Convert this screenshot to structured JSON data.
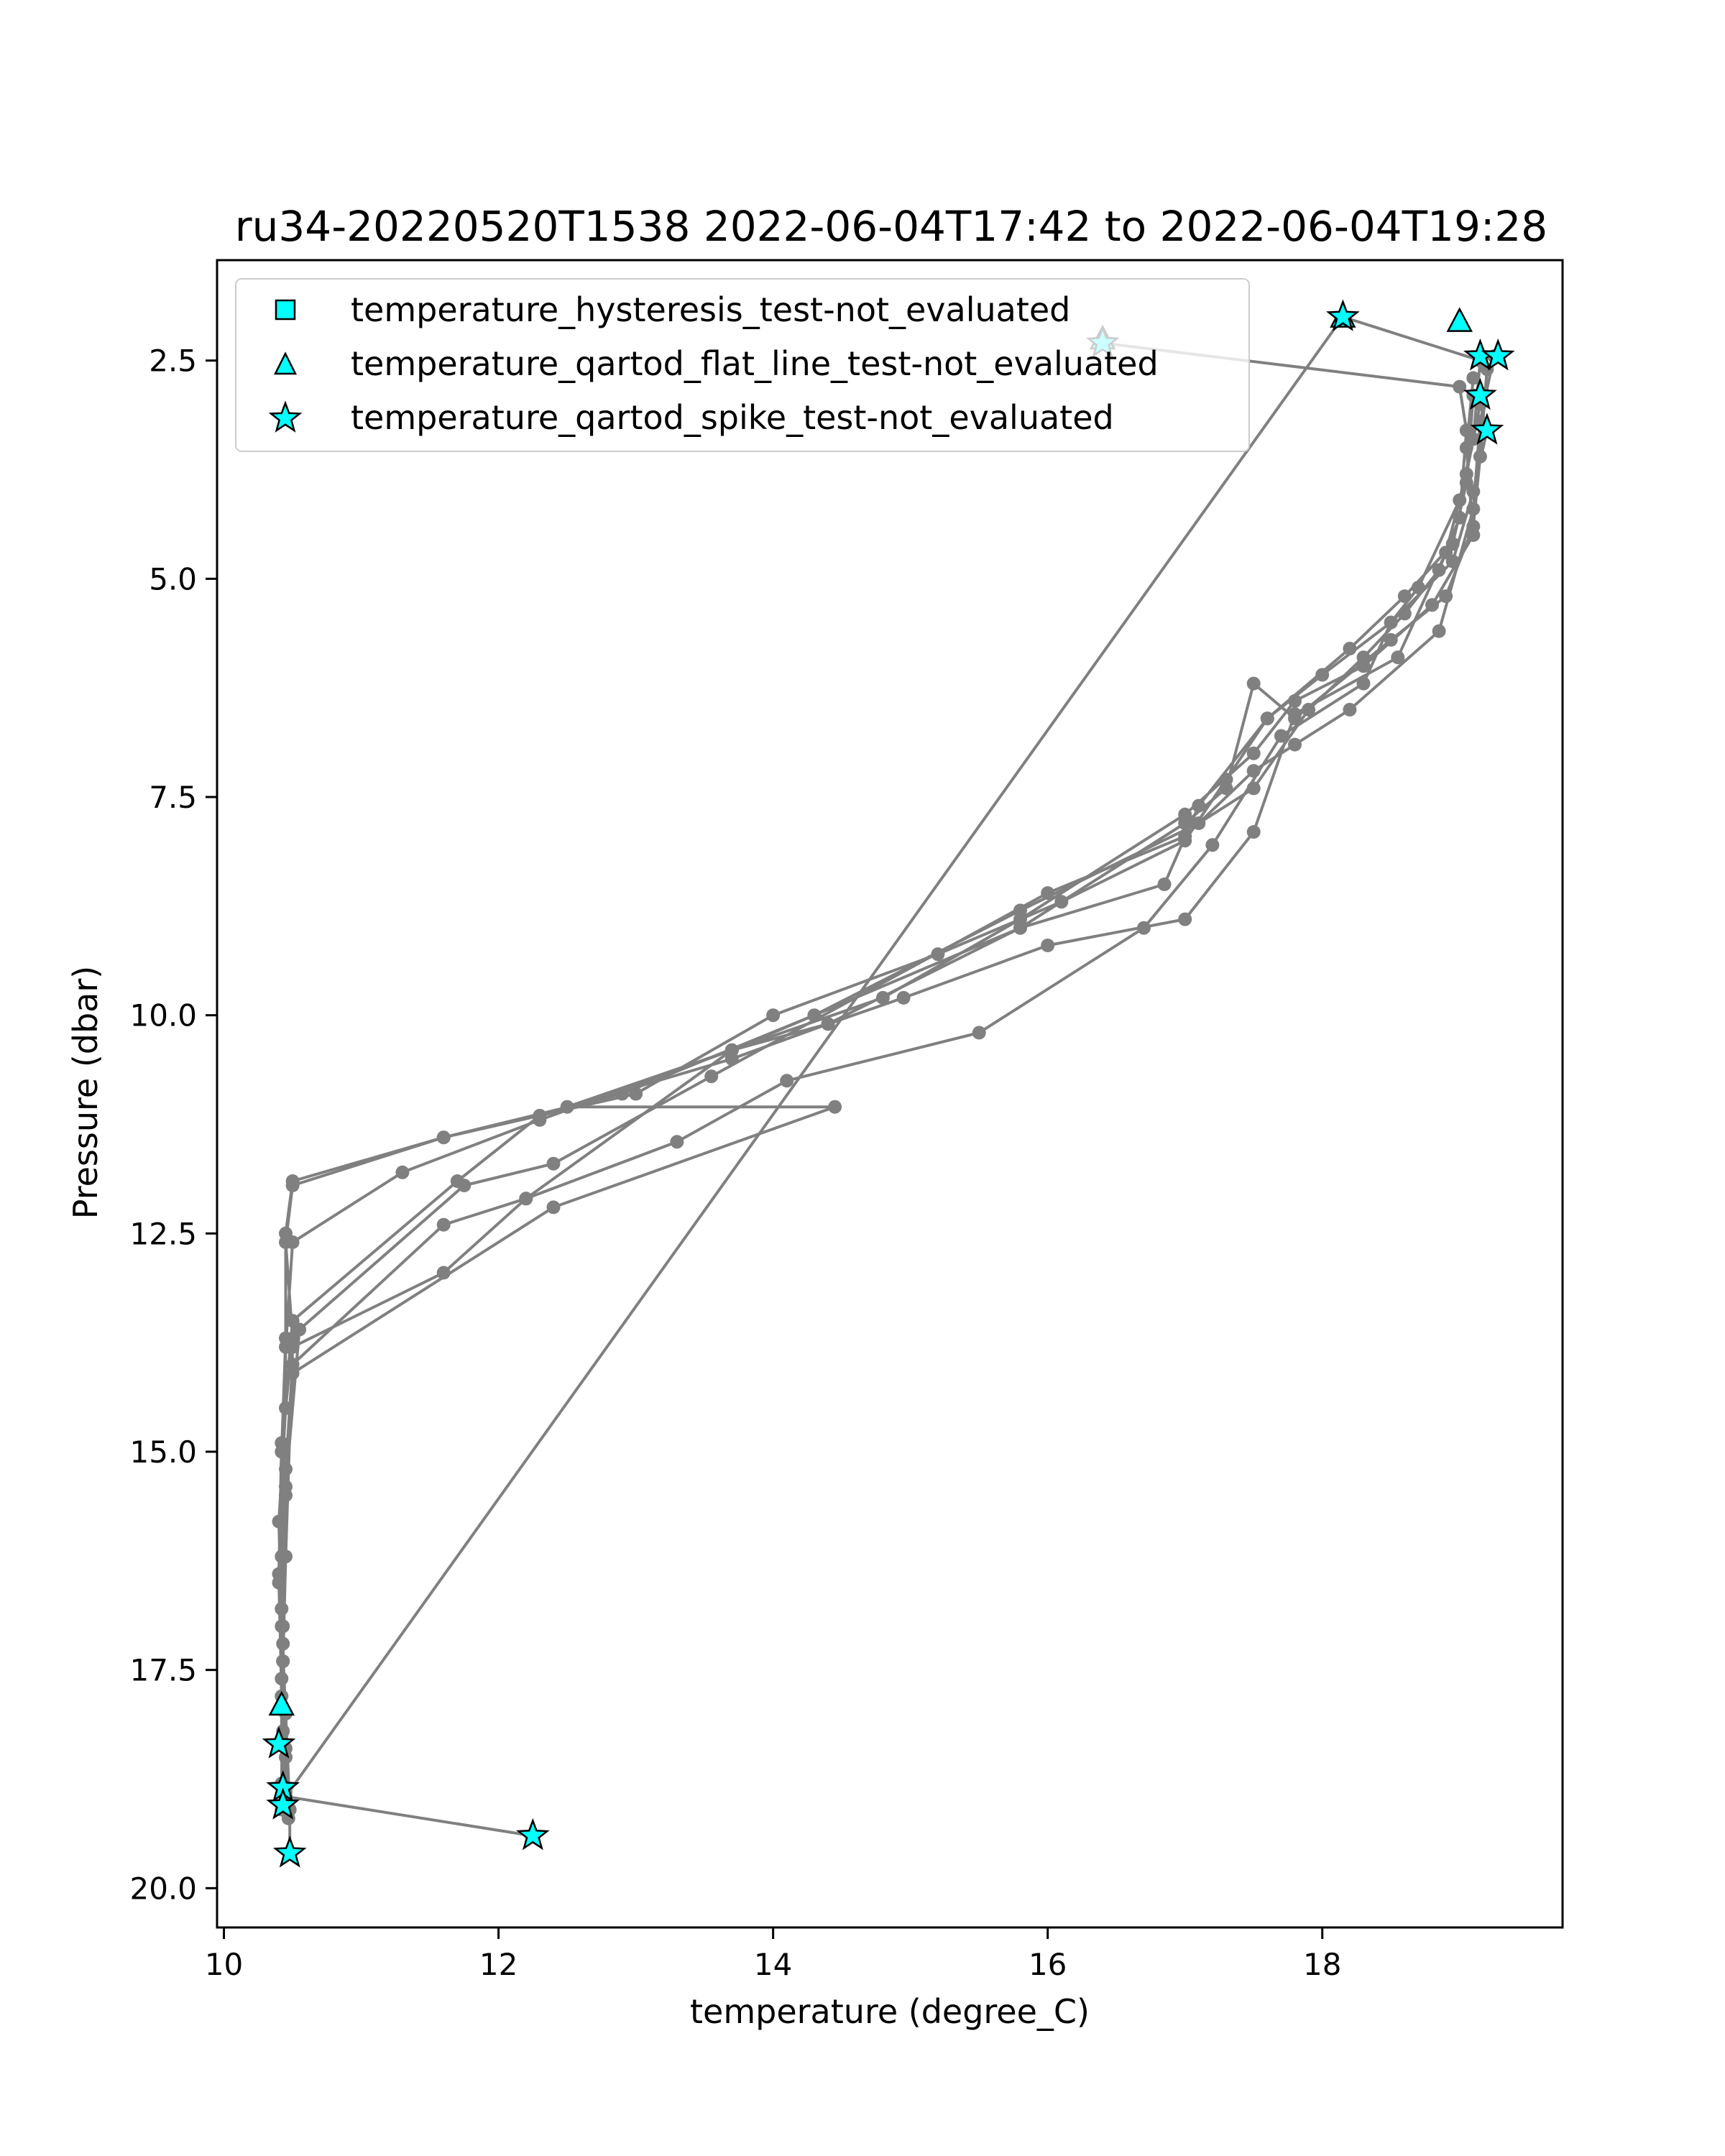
{
  "chart_data": {
    "type": "scatter",
    "title": "ru34-20220520T1538 2022-06-04T17:42 to 2022-06-04T19:28",
    "xlabel": "temperature (degree_C)",
    "ylabel": "Pressure (dbar)",
    "xlim": [
      9.95,
      19.75
    ],
    "ylim": [
      20.45,
      1.35
    ],
    "y_inverted": true,
    "grid": false,
    "legend_position": "top-left",
    "xticks": [
      "10",
      "12",
      "14",
      "16",
      "18"
    ],
    "xtick_values": [
      10,
      12,
      14,
      16,
      18
    ],
    "yticks": [
      "2.5",
      "5.0",
      "7.5",
      "10.0",
      "12.5",
      "15.0",
      "17.5",
      "20.0"
    ],
    "ytick_values": [
      2.5,
      5.0,
      7.5,
      10.0,
      12.5,
      15.0,
      17.5,
      20.0
    ],
    "line_color": "#808080",
    "marker_face_color": "#00ffff",
    "marker_edge_color": "#000000",
    "legend": [
      {
        "label": "temperature_hysteresis_test-not_evaluated",
        "marker": "square"
      },
      {
        "label": "temperature_qartod_flat_line_test-not_evaluated",
        "marker": "triangle"
      },
      {
        "label": "temperature_qartod_spike_test-not_evaluated",
        "marker": "star"
      }
    ],
    "series": [
      {
        "points": [
          [
            16.4,
            2.3
          ],
          [
            19.0,
            2.8
          ],
          [
            19.05,
            3.3
          ],
          [
            19.0,
            4.3
          ],
          [
            18.85,
            4.9
          ],
          [
            18.6,
            5.4
          ],
          [
            18.3,
            5.9
          ],
          [
            17.9,
            6.5
          ],
          [
            17.5,
            7.4
          ],
          [
            17.1,
            7.8
          ],
          [
            15.8,
            8.8
          ],
          [
            14.3,
            10.0
          ],
          [
            12.9,
            10.9
          ],
          [
            11.6,
            11.4
          ],
          [
            10.5,
            11.9
          ],
          [
            10.45,
            12.5
          ],
          [
            10.45,
            13.7
          ],
          [
            10.42,
            15.0
          ],
          [
            10.4,
            16.5
          ],
          [
            10.42,
            17.6
          ],
          [
            10.43,
            18.2
          ],
          [
            10.45,
            18.95
          ]
        ]
      },
      {
        "points": [
          [
            10.45,
            18.95
          ],
          [
            12.25,
            19.4
          ]
        ]
      },
      {
        "points": [
          [
            10.45,
            18.95
          ],
          [
            18.15,
            2.0
          ],
          [
            19.15,
            2.5
          ],
          [
            19.1,
            3.4
          ],
          [
            19.0,
            4.1
          ],
          [
            18.7,
            5.1
          ],
          [
            18.5,
            5.5
          ],
          [
            18.0,
            6.1
          ],
          [
            17.6,
            6.6
          ],
          [
            17.3,
            7.3
          ],
          [
            17.0,
            8.0
          ],
          [
            16.1,
            8.7
          ],
          [
            15.2,
            9.3
          ],
          [
            14.0,
            10.0
          ],
          [
            13.0,
            10.9
          ],
          [
            11.6,
            11.4
          ],
          [
            10.5,
            11.95
          ],
          [
            10.45,
            12.6
          ],
          [
            10.5,
            13.7
          ],
          [
            10.45,
            14.5
          ],
          [
            10.4,
            15.8
          ],
          [
            10.42,
            17.0
          ],
          [
            10.45,
            18.0
          ],
          [
            10.48,
            19.1
          ],
          [
            10.48,
            19.6
          ]
        ]
      },
      {
        "points": [
          [
            19.1,
            2.7
          ],
          [
            19.05,
            3.5
          ],
          [
            19.1,
            4.5
          ],
          [
            18.8,
            5.3
          ],
          [
            18.3,
            6.0
          ],
          [
            17.8,
            6.4
          ],
          [
            17.5,
            7.0
          ],
          [
            17.0,
            7.7
          ],
          [
            15.8,
            8.9
          ],
          [
            14.8,
            9.8
          ],
          [
            13.7,
            10.4
          ],
          [
            12.3,
            11.2
          ],
          [
            11.3,
            11.8
          ],
          [
            10.5,
            12.6
          ],
          [
            10.45,
            13.8
          ],
          [
            10.42,
            16.2
          ],
          [
            10.43,
            17.4
          ],
          [
            10.45,
            18.5
          ],
          [
            10.47,
            19.2
          ]
        ]
      },
      {
        "points": [
          [
            19.2,
            2.6
          ],
          [
            19.15,
            3.6
          ],
          [
            19.1,
            4.4
          ],
          [
            18.9,
            5.2
          ],
          [
            18.5,
            5.7
          ],
          [
            17.8,
            6.6
          ],
          [
            17.5,
            6.2
          ],
          [
            17.3,
            7.4
          ],
          [
            17.0,
            7.8
          ],
          [
            15.8,
            9.0
          ],
          [
            13.7,
            10.4
          ],
          [
            12.2,
            12.1
          ],
          [
            11.6,
            12.4
          ],
          [
            10.5,
            14.0
          ],
          [
            10.45,
            15.2
          ],
          [
            10.43,
            17.2
          ],
          [
            10.45,
            18.4
          ]
        ]
      },
      {
        "points": [
          [
            19.25,
            2.45
          ],
          [
            19.15,
            3.2
          ],
          [
            19.1,
            4.2
          ],
          [
            18.85,
            5.6
          ],
          [
            18.2,
            6.5
          ],
          [
            17.8,
            6.9
          ],
          [
            17.5,
            7.2
          ],
          [
            17.0,
            7.95
          ],
          [
            16.0,
            8.6
          ],
          [
            13.55,
            10.7
          ],
          [
            12.4,
            11.7
          ],
          [
            11.75,
            11.95
          ],
          [
            10.55,
            13.6
          ],
          [
            10.45,
            15.4
          ],
          [
            10.42,
            16.8
          ],
          [
            10.42,
            18.35
          ]
        ]
      },
      {
        "points": [
          [
            19.2,
            3.3
          ],
          [
            19.1,
            4.0
          ],
          [
            18.95,
            4.8
          ],
          [
            18.5,
            5.5
          ],
          [
            18.3,
            6.2
          ],
          [
            17.7,
            6.8
          ],
          [
            17.2,
            8.05
          ],
          [
            16.7,
            9.0
          ],
          [
            15.5,
            10.2
          ],
          [
            14.1,
            10.75
          ],
          [
            13.3,
            11.45
          ],
          [
            12.2,
            12.1
          ],
          [
            11.6,
            12.95
          ],
          [
            10.5,
            13.8
          ],
          [
            10.45,
            16.2
          ],
          [
            10.43,
            17.4
          ],
          [
            10.42,
            19.1
          ]
        ]
      },
      {
        "points": [
          [
            19.15,
            3.0
          ],
          [
            19.05,
            3.8
          ],
          [
            18.9,
            4.7
          ],
          [
            18.55,
            5.9
          ],
          [
            17.8,
            6.55
          ],
          [
            17.5,
            7.9
          ],
          [
            17.0,
            8.9
          ],
          [
            16.0,
            9.2
          ],
          [
            14.95,
            9.8
          ],
          [
            14.4,
            10.1
          ],
          [
            13.7,
            10.5
          ],
          [
            12.3,
            11.15
          ],
          [
            11.7,
            11.9
          ],
          [
            10.5,
            13.5
          ],
          [
            10.42,
            14.9
          ],
          [
            10.4,
            16.4
          ],
          [
            10.42,
            17.8
          ],
          [
            10.45,
            18.9
          ]
        ]
      },
      {
        "points": [
          [
            19.1,
            2.9
          ],
          [
            19.05,
            3.9
          ],
          [
            18.95,
            4.6
          ],
          [
            18.6,
            5.2
          ],
          [
            18.2,
            5.8
          ],
          [
            17.6,
            6.6
          ],
          [
            17.1,
            7.6
          ],
          [
            16.85,
            8.5
          ],
          [
            15.8,
            9.0
          ],
          [
            14.4,
            10.1
          ],
          [
            13.7,
            10.4
          ],
          [
            12.5,
            11.05
          ],
          [
            14.45,
            11.05
          ],
          [
            12.4,
            12.2
          ],
          [
            10.5,
            14.1
          ],
          [
            10.45,
            15.5
          ],
          [
            10.43,
            17.0
          ],
          [
            10.42,
            18.8
          ]
        ]
      }
    ],
    "flags": [
      {
        "type": "triangle",
        "points": [
          [
            18.15,
            2.0
          ],
          [
            19.0,
            2.05
          ],
          [
            16.4,
            2.25
          ],
          [
            10.42,
            17.9
          ]
        ]
      },
      {
        "type": "star",
        "points": [
          [
            18.15,
            2.0
          ],
          [
            16.4,
            2.3
          ],
          [
            19.15,
            2.45
          ],
          [
            19.28,
            2.45
          ],
          [
            19.15,
            2.9
          ],
          [
            19.2,
            3.3
          ],
          [
            10.4,
            18.35
          ],
          [
            10.43,
            18.85
          ],
          [
            10.43,
            19.05
          ],
          [
            10.48,
            19.6
          ],
          [
            12.25,
            19.4
          ]
        ]
      }
    ]
  }
}
